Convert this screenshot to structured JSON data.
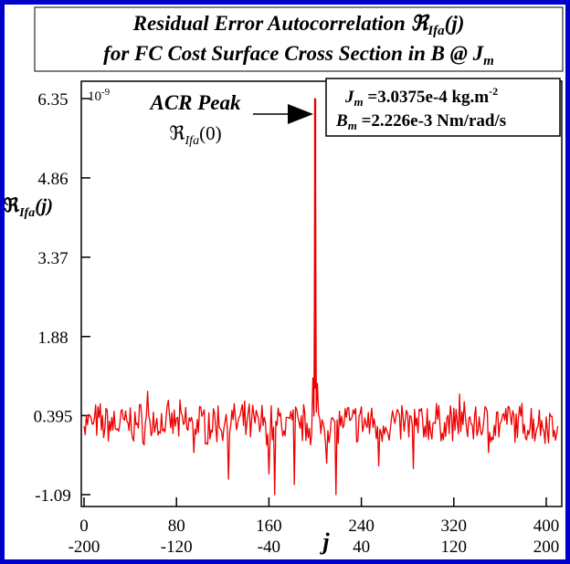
{
  "chart_data": {
    "type": "line",
    "title_line1": "Residual Error Autocorrelation ℜ",
    "title_line1_sub": "Ifa",
    "title_line1_tail": "(j)",
    "title_line2": "for FC Cost Surface Cross Section in B @ J",
    "title_line2_sub": "m",
    "ylabel_main": "ℜ",
    "ylabel_sub": "Ifa",
    "ylabel_tail": "(j)",
    "xlabel": "j",
    "y_multiplier": "10",
    "y_multiplier_exp": "-9",
    "ylim": [
      -1.09,
      6.35
    ],
    "xlim": [
      -200,
      210
    ],
    "yticks": [
      {
        "value": 6.35,
        "label": "6.35"
      },
      {
        "value": 4.86,
        "label": "4.86"
      },
      {
        "value": 3.37,
        "label": "3.37"
      },
      {
        "value": 1.88,
        "label": "1.88"
      },
      {
        "value": 0.395,
        "label": "0.395"
      },
      {
        "value": -1.09,
        "label": "-1.09"
      }
    ],
    "xticks": [
      {
        "value": -200,
        "top": "0",
        "bottom": "-200"
      },
      {
        "value": -120,
        "top": "80",
        "bottom": "-120"
      },
      {
        "value": -40,
        "top": "160",
        "bottom": "-40"
      },
      {
        "value": 40,
        "top": "240",
        "bottom": "40"
      },
      {
        "value": 120,
        "top": "320",
        "bottom": "120"
      },
      {
        "value": 200,
        "top": "400",
        "bottom": "200"
      }
    ],
    "annotation": {
      "line1": "ACR Peak",
      "line2_main": "ℜ",
      "line2_sub": "Ifa",
      "line2_tail": "(0)"
    },
    "info_box": {
      "row1_sym": "J",
      "row1_sub": "m",
      "row1_text": " =3.0375e-4 kg.m",
      "row1_sup": "-2",
      "row2_sym": "B",
      "row2_sub": "m",
      "row2_text": " =2.226e-3 Nm/rad/s"
    },
    "series": [
      {
        "color": "#ee0000",
        "noise_seed": 7,
        "noise_center": 0.25,
        "noise_amplitude": 0.3,
        "peak_x": 0,
        "peak_y": 6.35,
        "points": [
          {
            "x": -200,
            "y": 0.2
          },
          {
            "x": -170,
            "y": 0.1
          },
          {
            "x": -145,
            "y": 0.85
          },
          {
            "x": -105,
            "y": -0.3
          },
          {
            "x": -75,
            "y": -0.8
          },
          {
            "x": -40,
            "y": -0.7
          },
          {
            "x": -35,
            "y": -1.09
          },
          {
            "x": -18,
            "y": -0.9
          },
          {
            "x": -10,
            "y": 0.6
          },
          {
            "x": -2,
            "y": 1.1
          },
          {
            "x": 0,
            "y": 6.35
          },
          {
            "x": 2,
            "y": 1.0
          },
          {
            "x": 10,
            "y": -0.5
          },
          {
            "x": 18,
            "y": -1.09
          },
          {
            "x": 55,
            "y": -0.55
          },
          {
            "x": 85,
            "y": -0.6
          },
          {
            "x": 125,
            "y": 0.8
          },
          {
            "x": 150,
            "y": -0.3
          },
          {
            "x": 168,
            "y": 0.55
          },
          {
            "x": 210,
            "y": 0.2
          }
        ]
      }
    ]
  }
}
